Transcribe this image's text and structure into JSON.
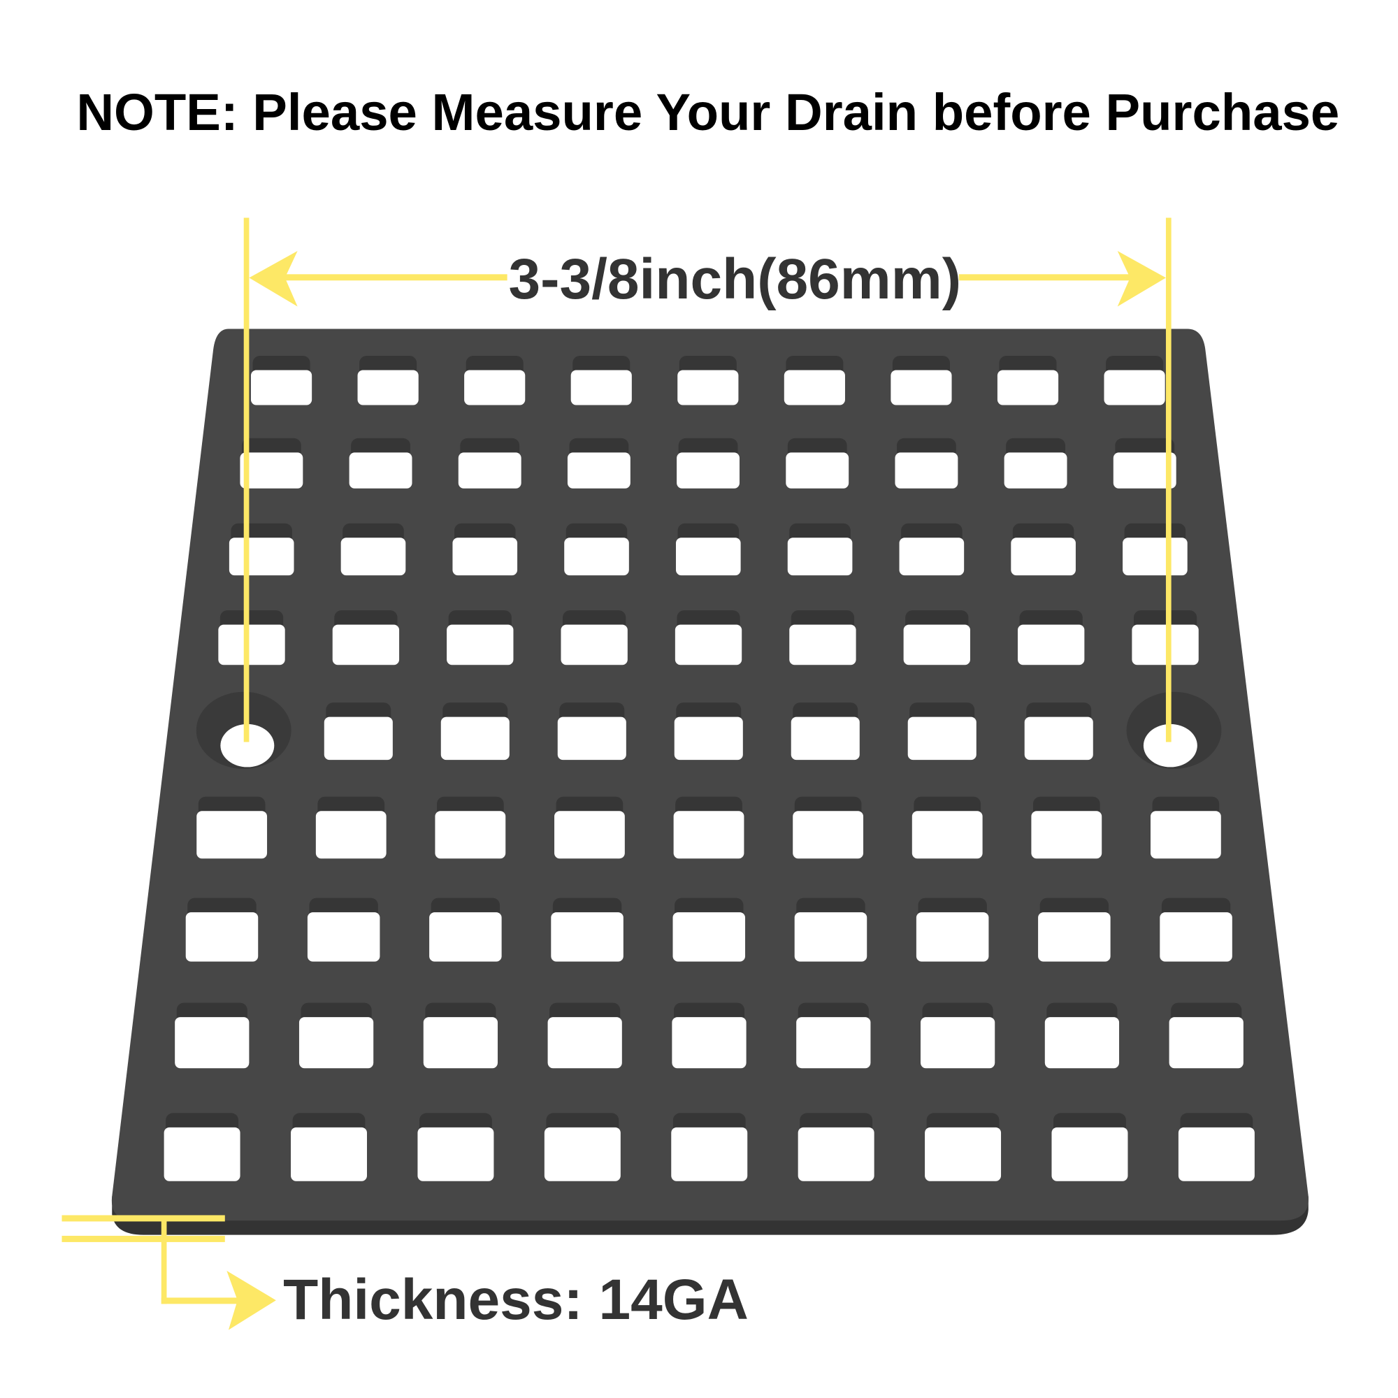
{
  "title": "NOTE: Please Measure Your Drain before Purchase",
  "width_label": "3-3/8inch(86mm)",
  "thickness_label": "Thickness: 14GA",
  "grid": {
    "rows": 9,
    "cols": 9,
    "screw_holes_row": 4
  },
  "colors": {
    "plate": "#474747",
    "plate_edge": "#333333",
    "accent": "#fde866",
    "text": "#333333"
  }
}
